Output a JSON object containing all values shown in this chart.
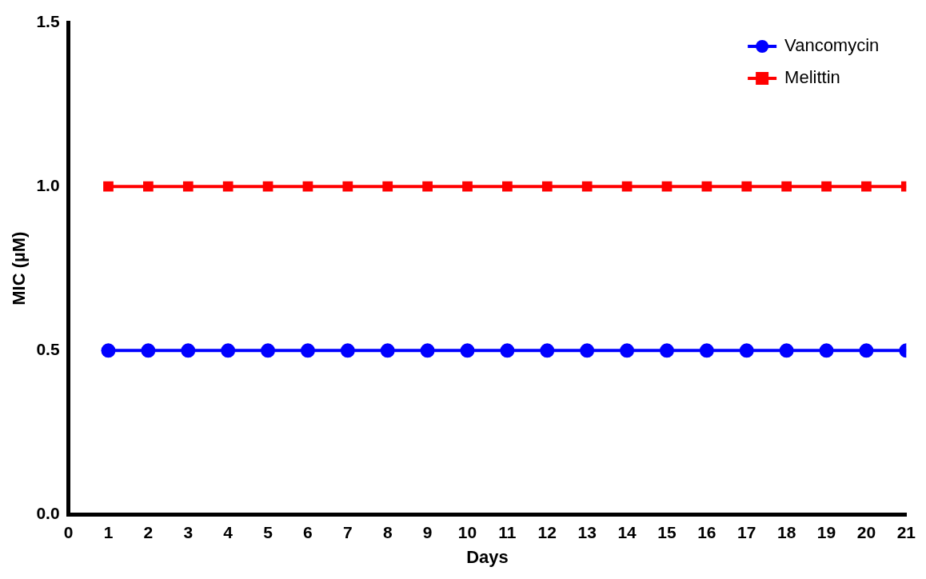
{
  "chart_data": {
    "type": "line",
    "xlabel": "Days",
    "ylabel": "MIC (µM)",
    "x": [
      1,
      2,
      3,
      4,
      5,
      6,
      7,
      8,
      9,
      10,
      11,
      12,
      13,
      14,
      15,
      16,
      17,
      18,
      19,
      20,
      21
    ],
    "series": [
      {
        "name": "Vancomycin",
        "color": "#0000ff",
        "marker": "circle",
        "values": [
          0.5,
          0.5,
          0.5,
          0.5,
          0.5,
          0.5,
          0.5,
          0.5,
          0.5,
          0.5,
          0.5,
          0.5,
          0.5,
          0.5,
          0.5,
          0.5,
          0.5,
          0.5,
          0.5,
          0.5,
          0.5
        ]
      },
      {
        "name": "Melittin",
        "color": "#ff0000",
        "marker": "square",
        "values": [
          1,
          1,
          1,
          1,
          1,
          1,
          1,
          1,
          1,
          1,
          1,
          1,
          1,
          1,
          1,
          1,
          1,
          1,
          1,
          1,
          1
        ]
      }
    ],
    "xlim": [
      0,
      21
    ],
    "xticks": [
      0,
      1,
      2,
      3,
      4,
      5,
      6,
      7,
      8,
      9,
      10,
      11,
      12,
      13,
      14,
      15,
      16,
      17,
      18,
      19,
      20,
      21
    ],
    "ylim": [
      0,
      1.5
    ],
    "yticks": [
      {
        "value": 0,
        "label": "0.0"
      },
      {
        "value": 0.5,
        "label": "0.5"
      },
      {
        "value": 1,
        "label": "1.0"
      },
      {
        "value": 1.5,
        "label": "1.5"
      }
    ],
    "grid": false,
    "legend": "top right",
    "line_style": "solid"
  }
}
